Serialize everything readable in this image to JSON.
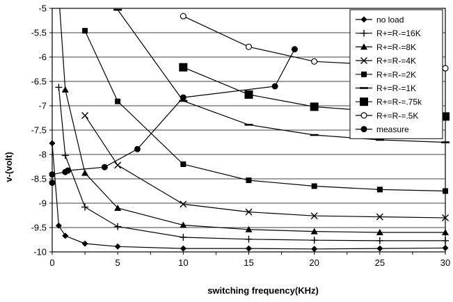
{
  "chart_data": {
    "type": "line",
    "title": "",
    "xlabel": "switching frequency(KHz)",
    "ylabel": "v-(volt)",
    "xlim": [
      0,
      30
    ],
    "ylim": [
      -10,
      -5
    ],
    "xticks": [
      0,
      5,
      10,
      15,
      20,
      25,
      30
    ],
    "yticks": [
      -5,
      -5.5,
      -6,
      -6.5,
      -7,
      -7.5,
      -8,
      -8.5,
      -9,
      -9.5,
      -10
    ],
    "ytick_labels": [
      "-5",
      "-5.5",
      "-6",
      "-6.5",
      "-7",
      "-7.5",
      "-8",
      "-8.5",
      "-9",
      "-9.5",
      "-10"
    ],
    "grid": "horizontal",
    "legend_position": "top-right",
    "series": [
      {
        "name": "no load",
        "marker": "diamond",
        "x": [
          0,
          0.5,
          1,
          2.5,
          5,
          10,
          15,
          20,
          25,
          30
        ],
        "y": [
          -7.77,
          -9.46,
          -9.67,
          -9.83,
          -9.89,
          -9.93,
          -9.93,
          -9.94,
          -9.93,
          -9.92
        ]
      },
      {
        "name": "R+=R-=16K",
        "marker": "plus",
        "x": [
          0.5,
          1,
          2.5,
          5,
          10,
          15,
          20,
          25,
          30
        ],
        "y": [
          -6.62,
          -8.02,
          -9.08,
          -9.48,
          -9.7,
          -9.74,
          -9.76,
          -9.77,
          -9.77
        ]
      },
      {
        "name": "R+=R-=8K",
        "marker": "triangle",
        "x": [
          0.5,
          1,
          2.5,
          5,
          10,
          15,
          20,
          25,
          30
        ],
        "y": [
          -4.7,
          -6.67,
          -8.38,
          -9.1,
          -9.45,
          -9.54,
          -9.58,
          -9.6,
          -9.6
        ]
      },
      {
        "name": "R+=R-=4K",
        "marker": "x",
        "x": [
          2.5,
          5,
          10,
          15,
          20,
          25,
          30
        ],
        "y": [
          -7.2,
          -8.22,
          -9.02,
          -9.18,
          -9.26,
          -9.28,
          -9.3
        ]
      },
      {
        "name": "R+=R-=2K",
        "marker": "square",
        "x": [
          2.5,
          5,
          10,
          15,
          20,
          25,
          30
        ],
        "y": [
          -5.46,
          -6.91,
          -8.2,
          -8.53,
          -8.65,
          -8.72,
          -8.75
        ]
      },
      {
        "name": "R+=R-=1K",
        "marker": "dash",
        "x": [
          5,
          10,
          15,
          20,
          25,
          30
        ],
        "y": [
          -5.03,
          -6.9,
          -7.39,
          -7.6,
          -7.7,
          -7.75
        ]
      },
      {
        "name": "R+=R-=.75k",
        "marker": "bigsquare",
        "x": [
          10,
          15,
          20,
          30
        ],
        "y": [
          -6.21,
          -6.77,
          -7.02,
          -7.22
        ]
      },
      {
        "name": "R+=R-=.5K",
        "marker": "circle-open",
        "x": [
          10,
          15,
          20,
          30
        ],
        "y": [
          -5.16,
          -5.79,
          -6.09,
          -6.23
        ]
      },
      {
        "name": "measure",
        "marker": "circle",
        "x": [
          0,
          0,
          1,
          1.2,
          4,
          6.5,
          10,
          17,
          18.5
        ],
        "y": [
          -8.58,
          -8.41,
          -8.36,
          -8.33,
          -8.26,
          -7.89,
          -6.83,
          -6.6,
          -5.84
        ]
      }
    ]
  }
}
